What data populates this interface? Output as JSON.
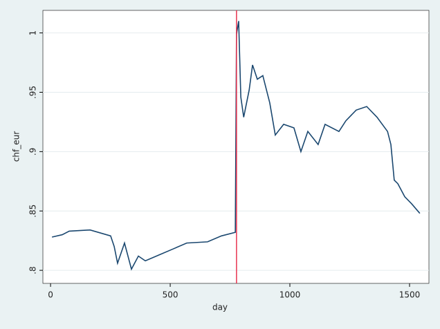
{
  "chart_data": {
    "type": "line",
    "x_label": "day",
    "y_label": "chf_eur",
    "xlim": [
      -32,
      1581
    ],
    "ylim": [
      0.789,
      1.019
    ],
    "xticks": [
      0,
      500,
      1000,
      1500
    ],
    "yticks": [
      {
        "value": 0.8,
        "label": ".8"
      },
      {
        "value": 0.85,
        "label": ".85"
      },
      {
        "value": 0.9,
        "label": ".9"
      },
      {
        "value": 0.95,
        "label": ".95"
      },
      1
    ],
    "grid": true,
    "vline": {
      "x": 777,
      "color": "#e8334f"
    },
    "series": [
      {
        "name": "chf_eur",
        "color": "#1a476f",
        "x": [
          6,
          49,
          78,
          165,
          251,
          266,
          280,
          309,
          338,
          367,
          396,
          454,
          512,
          569,
          656,
          714,
          772,
          777,
          786,
          795,
          807,
          830,
          844,
          864,
          887,
          916,
          939,
          974,
          1017,
          1046,
          1075,
          1118,
          1147,
          1205,
          1234,
          1277,
          1321,
          1364,
          1408,
          1422,
          1436,
          1451,
          1480,
          1509,
          1543
        ],
        "values": [
          0.828,
          0.83,
          0.833,
          0.834,
          0.829,
          0.82,
          0.806,
          0.823,
          0.801,
          0.812,
          0.808,
          0.813,
          0.818,
          0.823,
          0.824,
          0.829,
          0.832,
          0.999,
          1.01,
          0.946,
          0.929,
          0.952,
          0.973,
          0.961,
          0.964,
          0.941,
          0.914,
          0.923,
          0.92,
          0.9,
          0.917,
          0.906,
          0.923,
          0.917,
          0.926,
          0.935,
          0.938,
          0.929,
          0.917,
          0.906,
          0.876,
          0.873,
          0.862,
          0.856,
          0.848
        ]
      }
    ]
  }
}
